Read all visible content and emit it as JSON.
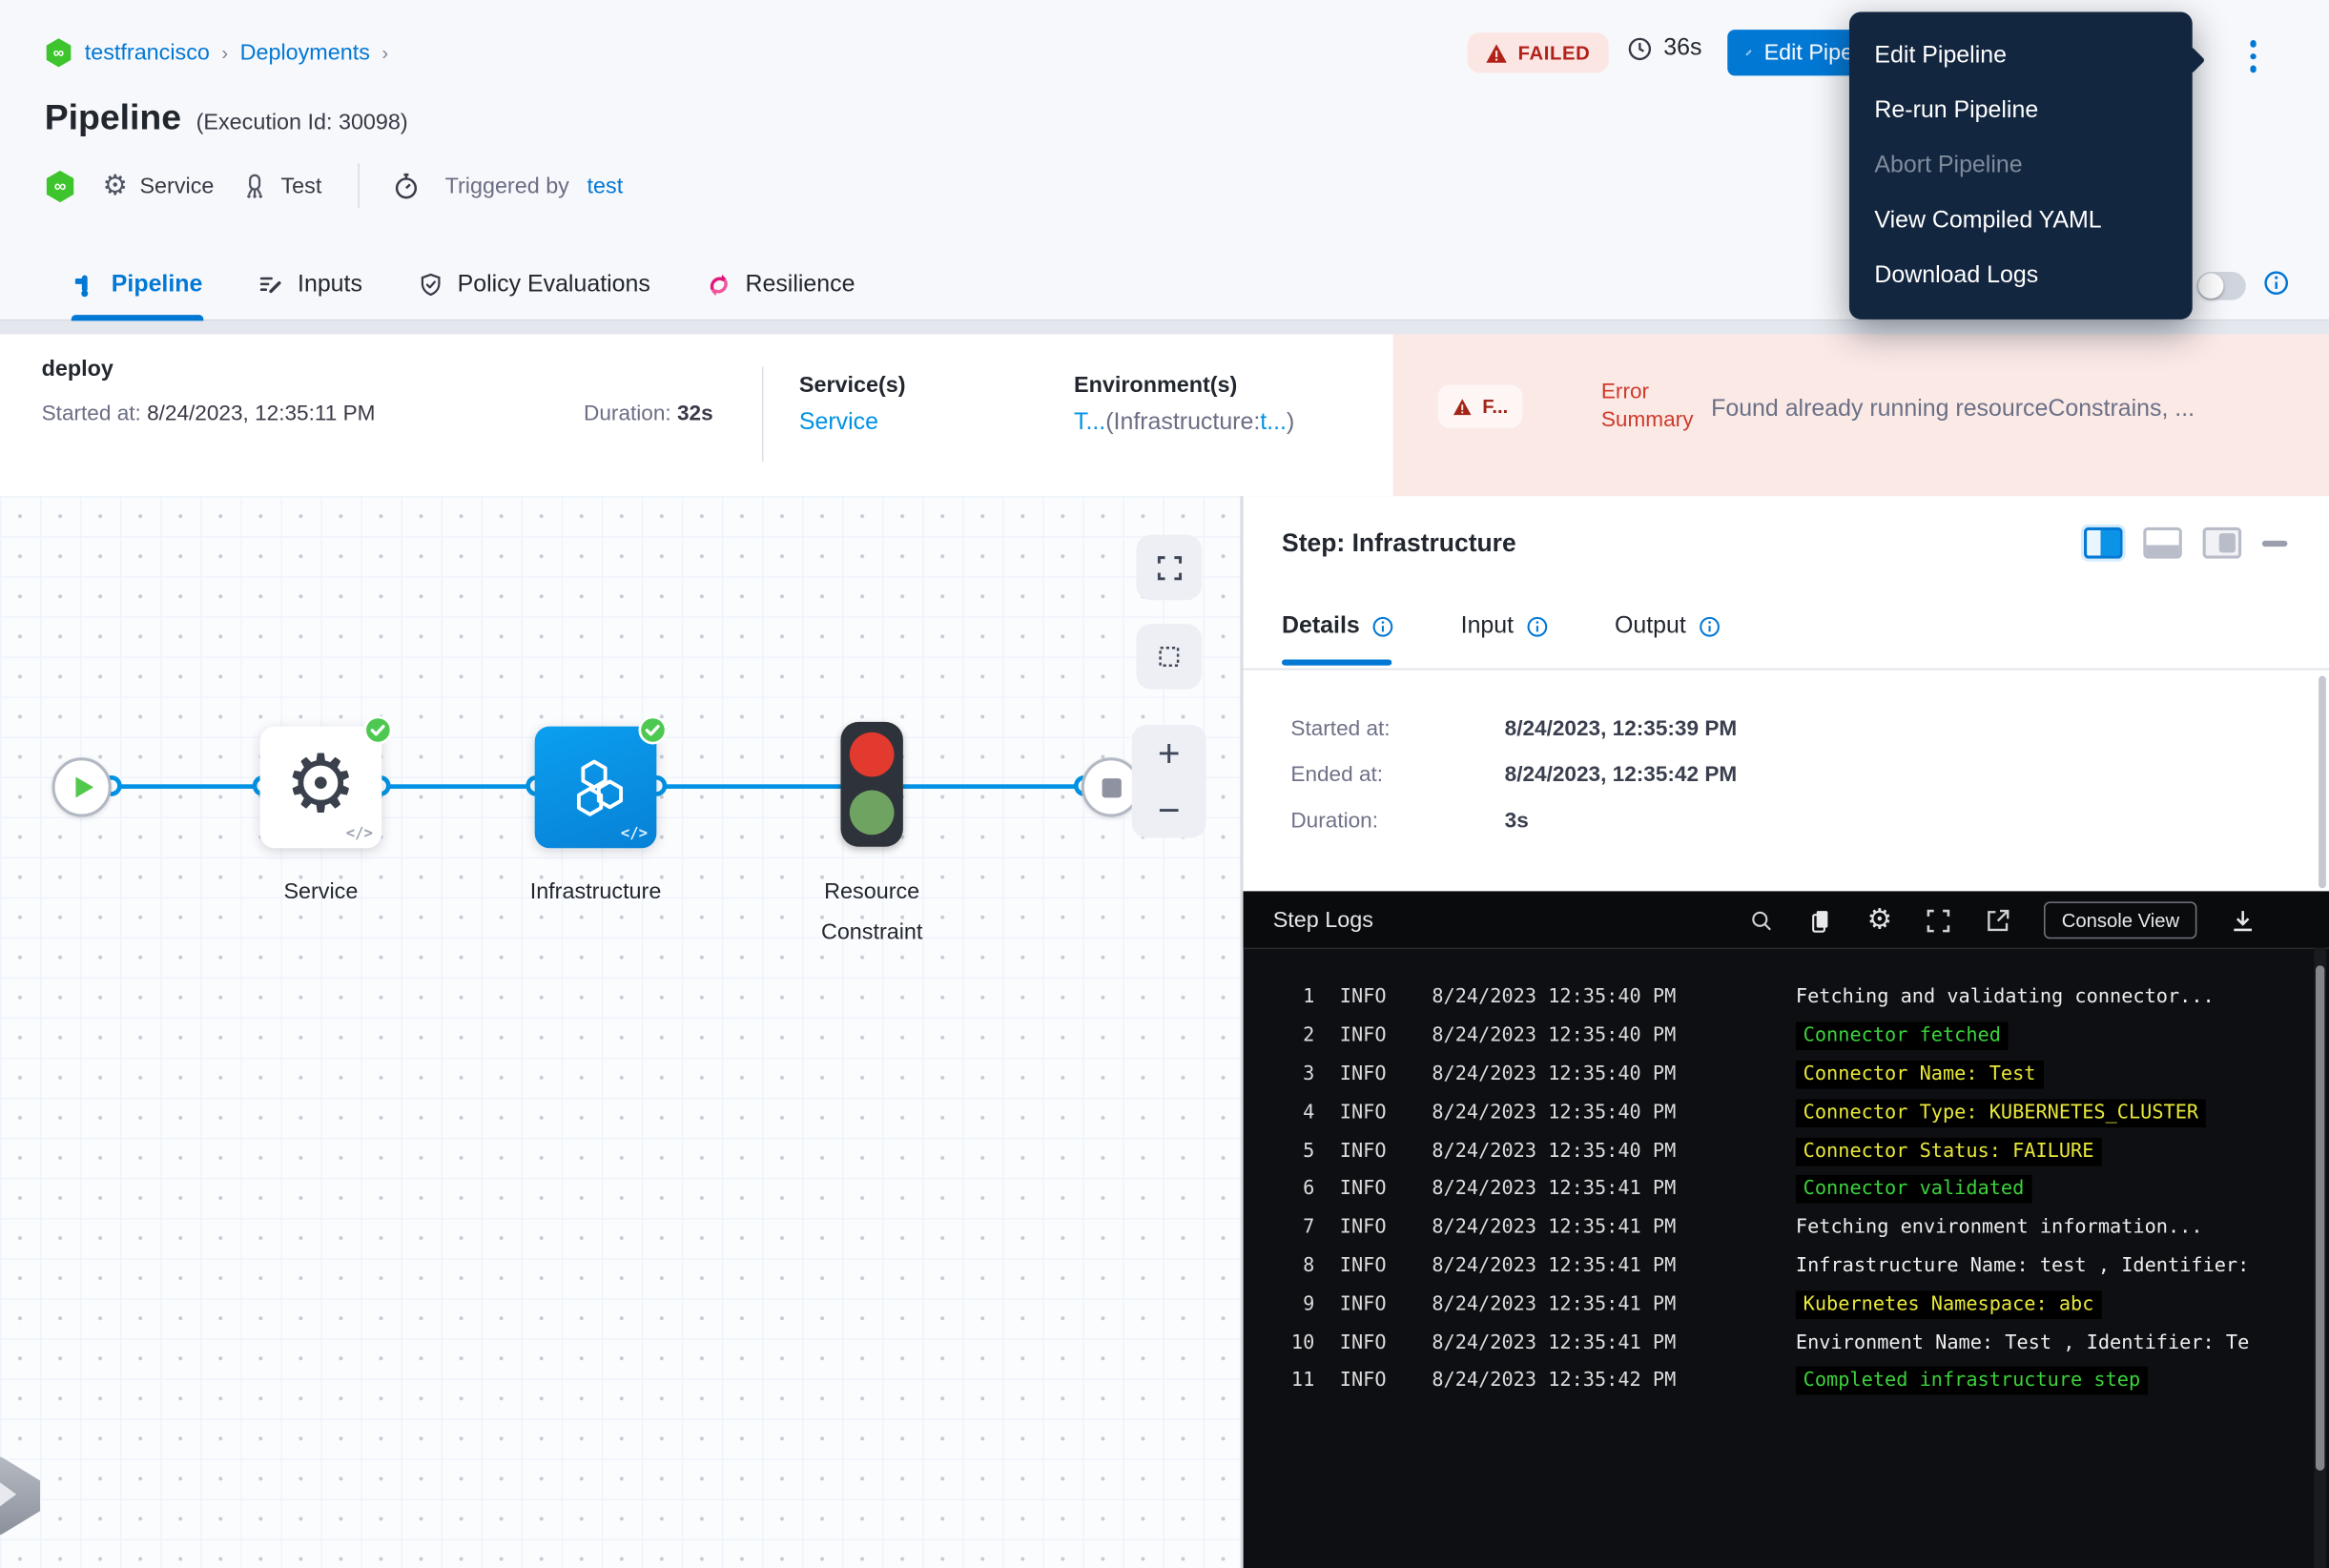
{
  "colors": {
    "accent": "#0278d5",
    "link": "#0092e4",
    "failed_text": "#b1211a",
    "failed_bg": "#fbe6e4",
    "menu_bg": "#13263f",
    "infra_node": "#0b93e8",
    "success_green": "#4dc952",
    "log_green": "#3bd23b",
    "log_yellow": "#e8e83a"
  },
  "breadcrumb": {
    "items": [
      "testfrancisco",
      "Deployments"
    ],
    "logo": "harness-logo"
  },
  "header": {
    "title": "Pipeline",
    "execution_id": "(Execution Id: 30098)",
    "service_chip": "Service",
    "env_chip": "Test",
    "trigger_label": "Triggered by",
    "trigger_user": "test",
    "status": "FAILED",
    "elapsed": "36s",
    "edit_button": "Edit Pipeline"
  },
  "menu": {
    "items": [
      {
        "label": "Edit Pipeline",
        "disabled": false
      },
      {
        "label": "Re-run Pipeline",
        "disabled": false
      },
      {
        "label": "Abort Pipeline",
        "disabled": true
      },
      {
        "label": "View Compiled YAML",
        "disabled": false
      },
      {
        "label": "Download Logs",
        "disabled": false
      }
    ]
  },
  "tabs": [
    {
      "label": "Pipeline",
      "icon": "pipeline-icon",
      "active": true
    },
    {
      "label": "Inputs",
      "icon": "inputs-icon",
      "active": false
    },
    {
      "label": "Policy Evaluations",
      "icon": "shield-check-icon",
      "active": false
    },
    {
      "label": "Resilience",
      "icon": "resilience-icon",
      "active": false
    }
  ],
  "stage": {
    "name": "deploy",
    "started_label": "Started at:",
    "started_value": "8/24/2023, 12:35:11 PM",
    "duration_label": "Duration:",
    "duration_value": "32s",
    "services_label": "Service(s)",
    "services_value": "Service",
    "environments_label": "Environment(s)",
    "env_link1": "T...",
    "env_mid": "(Infrastructure:",
    "env_link2": "t...",
    "env_close": ")",
    "error_badge": "F...",
    "error_label": "Error Summary",
    "error_text": "Found already running resourceConstrains, ..."
  },
  "graph": {
    "nodes": [
      {
        "id": "start",
        "type": "start"
      },
      {
        "id": "service",
        "type": "step",
        "label": "Service"
      },
      {
        "id": "infrastructure",
        "type": "step",
        "label": "Infrastructure"
      },
      {
        "id": "resource-constraint",
        "type": "step",
        "label": "Resource Constraint"
      },
      {
        "id": "end",
        "type": "end"
      }
    ]
  },
  "step_panel": {
    "title": "Step: Infrastructure",
    "tabs": [
      {
        "label": "Details",
        "active": true
      },
      {
        "label": "Input",
        "active": false
      },
      {
        "label": "Output",
        "active": false
      }
    ],
    "details": [
      {
        "label": "Started at:",
        "value": "8/24/2023, 12:35:39 PM"
      },
      {
        "label": "Ended at:",
        "value": "8/24/2023, 12:35:42 PM"
      },
      {
        "label": "Duration:",
        "value": "3s"
      }
    ]
  },
  "logs": {
    "title": "Step Logs",
    "console_button": "Console View",
    "lines": [
      {
        "n": "1",
        "level": "INFO",
        "time": "8/24/2023 12:35:40 PM",
        "msg": "Fetching and validating connector...",
        "style": "default"
      },
      {
        "n": "2",
        "level": "INFO",
        "time": "8/24/2023 12:35:40 PM",
        "msg": "Connector fetched",
        "style": "green"
      },
      {
        "n": "3",
        "level": "INFO",
        "time": "8/24/2023 12:35:40 PM",
        "msg": "Connector Name: Test",
        "style": "yellow"
      },
      {
        "n": "4",
        "level": "INFO",
        "time": "8/24/2023 12:35:40 PM",
        "msg": "Connector Type: KUBERNETES_CLUSTER",
        "style": "yellow"
      },
      {
        "n": "5",
        "level": "INFO",
        "time": "8/24/2023 12:35:40 PM",
        "msg": "Connector Status: FAILURE",
        "style": "yellow"
      },
      {
        "n": "6",
        "level": "INFO",
        "time": "8/24/2023 12:35:41 PM",
        "msg": "Connector validated",
        "style": "green"
      },
      {
        "n": "7",
        "level": "INFO",
        "time": "8/24/2023 12:35:41 PM",
        "msg": "Fetching environment information...",
        "style": "default"
      },
      {
        "n": "8",
        "level": "INFO",
        "time": "8/24/2023 12:35:41 PM",
        "msg": "Infrastructure Name: test , Identifier:",
        "style": "default"
      },
      {
        "n": "9",
        "level": "INFO",
        "time": "8/24/2023 12:35:41 PM",
        "msg": "Kubernetes Namespace: abc",
        "style": "yellow"
      },
      {
        "n": "10",
        "level": "INFO",
        "time": "8/24/2023 12:35:41 PM",
        "msg": "Environment Name: Test , Identifier: Te",
        "style": "default"
      },
      {
        "n": "11",
        "level": "INFO",
        "time": "8/24/2023 12:35:42 PM",
        "msg": "Completed infrastructure step",
        "style": "green"
      }
    ]
  }
}
